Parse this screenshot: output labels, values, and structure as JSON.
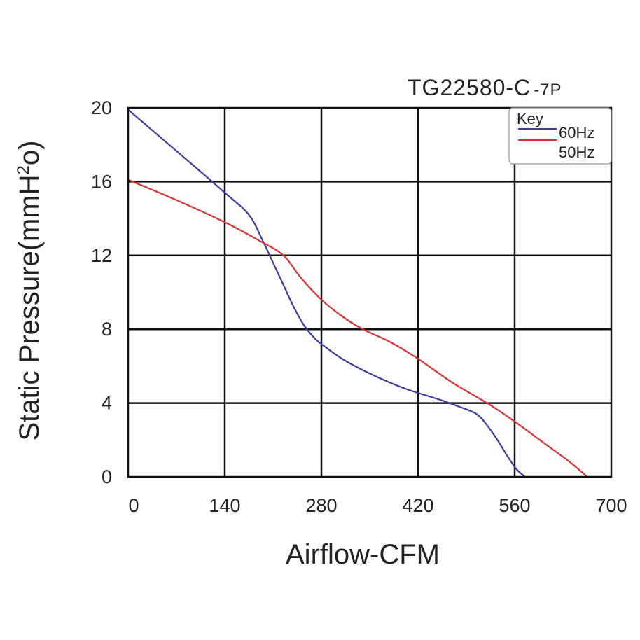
{
  "chart_data": {
    "type": "line",
    "title": "TG22580-C",
    "title_suffix": "-7P",
    "xlabel": "Airflow-CFM",
    "ylabel_main": "Static Pressure(mmH",
    "ylabel_sup": "2",
    "ylabel_end": "o)",
    "xlim": [
      0,
      700
    ],
    "ylim": [
      0,
      20
    ],
    "x_ticks": [
      0,
      140,
      280,
      420,
      560,
      700
    ],
    "y_ticks": [
      0,
      4,
      8,
      12,
      16,
      20
    ],
    "grid": true,
    "legend": {
      "title": "Key",
      "position": "top-right"
    },
    "series": [
      {
        "name": "60Hz",
        "color": "#3c3ca8",
        "points": [
          [
            0,
            19.9
          ],
          [
            50,
            18.3
          ],
          [
            100,
            16.7
          ],
          [
            140,
            15.4
          ],
          [
            175,
            14.2
          ],
          [
            195,
            12.8
          ],
          [
            210,
            11.6
          ],
          [
            225,
            10.4
          ],
          [
            240,
            9.2
          ],
          [
            255,
            8.2
          ],
          [
            268,
            7.6
          ],
          [
            280,
            7.2
          ],
          [
            310,
            6.4
          ],
          [
            350,
            5.6
          ],
          [
            400,
            4.8
          ],
          [
            450,
            4.2
          ],
          [
            480,
            3.8
          ],
          [
            505,
            3.4
          ],
          [
            520,
            2.8
          ],
          [
            535,
            2.0
          ],
          [
            550,
            1.1
          ],
          [
            563,
            0.4
          ],
          [
            575,
            0
          ]
        ]
      },
      {
        "name": "50Hz",
        "color": "#e03030",
        "points": [
          [
            0,
            16.1
          ],
          [
            70,
            15.0
          ],
          [
            140,
            13.8
          ],
          [
            190,
            12.8
          ],
          [
            225,
            12.0
          ],
          [
            250,
            10.8
          ],
          [
            280,
            9.6
          ],
          [
            310,
            8.7
          ],
          [
            340,
            8.0
          ],
          [
            380,
            7.3
          ],
          [
            420,
            6.4
          ],
          [
            470,
            5.1
          ],
          [
            520,
            4.0
          ],
          [
            560,
            3.0
          ],
          [
            600,
            1.9
          ],
          [
            640,
            0.8
          ],
          [
            665,
            0
          ]
        ]
      }
    ]
  }
}
